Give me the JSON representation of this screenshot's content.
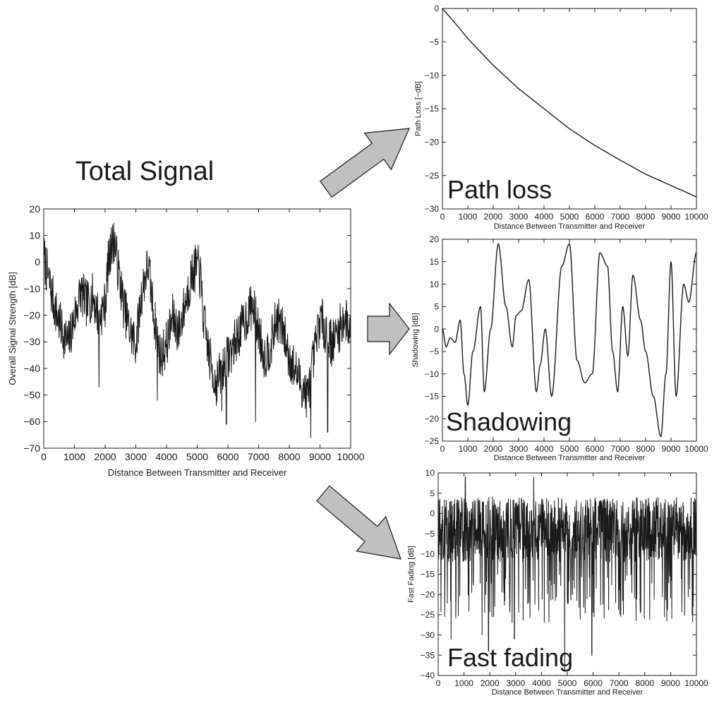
{
  "figure_title": "Total Signal",
  "colors": {
    "line": "#1a1a1a",
    "arrow_fill": "#c0c0c0",
    "arrow_stroke": "#1a1a1a",
    "background": "#ffffff"
  },
  "chart_data": [
    {
      "id": "total",
      "type": "line",
      "title": "",
      "xlabel": "Distance Between Transmitter and Receiver",
      "ylabel": "Overall Signal Strength [dB]",
      "xlim": [
        0,
        10000
      ],
      "ylim": [
        -70,
        20
      ],
      "xticks": [
        0,
        1000,
        2000,
        3000,
        4000,
        5000,
        6000,
        7000,
        8000,
        9000,
        10000
      ],
      "yticks": [
        20,
        10,
        0,
        -10,
        -20,
        -30,
        -40,
        -50,
        -60,
        -70
      ],
      "grid": false,
      "series": [
        {
          "x": [
            0,
            200,
            400,
            600,
            800,
            1000,
            1200,
            1400,
            1600,
            1800,
            2000,
            2100,
            2200,
            2300,
            2400,
            2600,
            2800,
            3000,
            3200,
            3400,
            3600,
            3800,
            4000,
            4200,
            4400,
            4600,
            4800,
            5000,
            5100,
            5200,
            5400,
            5600,
            5800,
            6000,
            6200,
            6400,
            6600,
            6800,
            7000,
            7200,
            7400,
            7600,
            7800,
            8000,
            8200,
            8400,
            8600,
            8800,
            9000,
            9200,
            9400,
            9600,
            9800,
            10000
          ],
          "values": [
            3,
            -8,
            -18,
            -25,
            -30,
            -20,
            -10,
            -15,
            -12,
            -20,
            -15,
            0,
            5,
            10,
            0,
            -15,
            -25,
            -30,
            -10,
            0,
            -20,
            -35,
            -30,
            -20,
            -25,
            -15,
            -5,
            0,
            -5,
            -20,
            -35,
            -45,
            -40,
            -35,
            -30,
            -25,
            -20,
            -15,
            -25,
            -35,
            -30,
            -20,
            -25,
            -35,
            -40,
            -45,
            -50,
            -35,
            -20,
            -25,
            -30,
            -25,
            -20,
            -25
          ],
          "min_spikes": [
            {
              "x": 1800,
              "y": -47
            },
            {
              "x": 3700,
              "y": -52
            },
            {
              "x": 5800,
              "y": -56
            },
            {
              "x": 5950,
              "y": -61
            },
            {
              "x": 6900,
              "y": -60
            },
            {
              "x": 8700,
              "y": -66
            },
            {
              "x": 9250,
              "y": -64
            }
          ],
          "max_spikes": [
            {
              "x": 2200,
              "y": 13
            },
            {
              "x": 5100,
              "y": 2
            }
          ]
        }
      ]
    },
    {
      "id": "pathloss",
      "type": "line",
      "title": "",
      "xlabel": "Distance Between Transmitter and Receiver",
      "ylabel": "Path Loss [−dB]",
      "xlim": [
        0,
        10000
      ],
      "ylim": [
        -30,
        0
      ],
      "xticks": [
        0,
        1000,
        2000,
        3000,
        4000,
        5000,
        6000,
        7000,
        8000,
        9000,
        10000
      ],
      "yticks": [
        0,
        -5,
        -10,
        -15,
        -20,
        -25,
        -30
      ],
      "grid": false,
      "series": [
        {
          "x": [
            0,
            500,
            1000,
            2000,
            3000,
            4000,
            5000,
            6000,
            7000,
            8000,
            9000,
            10000
          ],
          "values": [
            0,
            -2.2,
            -4.5,
            -8.5,
            -12,
            -15,
            -18,
            -20.5,
            -22.7,
            -24.8,
            -26.5,
            -28.2
          ]
        }
      ]
    },
    {
      "id": "shadowing",
      "type": "line",
      "title": "",
      "xlabel": "Distance Between Transmitter and Receiver",
      "ylabel": "Shadowing [dB]",
      "xlim": [
        0,
        10000
      ],
      "ylim": [
        -25,
        20
      ],
      "xticks": [
        0,
        1000,
        2000,
        3000,
        4000,
        5000,
        6000,
        7000,
        8000,
        9000,
        10000
      ],
      "yticks": [
        20,
        15,
        10,
        5,
        0,
        -5,
        -10,
        -15,
        -20,
        -25
      ],
      "grid": false,
      "series": [
        {
          "x": [
            0,
            150,
            300,
            500,
            700,
            850,
            1000,
            1200,
            1500,
            1650,
            1900,
            2200,
            2500,
            2750,
            2900,
            3100,
            3400,
            3700,
            3850,
            4050,
            4300,
            4700,
            5000,
            5300,
            5600,
            5900,
            6200,
            6500,
            6700,
            6900,
            7100,
            7300,
            7500,
            7800,
            8000,
            8300,
            8600,
            8800,
            9000,
            9200,
            9500,
            9700,
            10000
          ],
          "values": [
            0,
            -4,
            -2,
            -3,
            2,
            -10,
            -17,
            -5,
            5,
            -14,
            0,
            19,
            5,
            -4,
            3,
            4,
            11,
            -14,
            -8,
            0,
            -15,
            14,
            19,
            -7,
            -12,
            -10,
            17,
            14,
            -5,
            -14,
            5,
            -6,
            12,
            2,
            -5,
            -15,
            -24,
            -10,
            15,
            -15,
            10,
            6,
            17
          ]
        }
      ]
    },
    {
      "id": "fastfading",
      "type": "line",
      "title": "",
      "xlabel": "Distance Between Transmitter and Receiver",
      "ylabel": "Fast Fading [dB]",
      "xlim": [
        0,
        10000
      ],
      "ylim": [
        -40,
        10
      ],
      "xticks": [
        0,
        1000,
        2000,
        3000,
        4000,
        5000,
        6000,
        7000,
        8000,
        9000,
        10000
      ],
      "yticks": [
        10,
        5,
        0,
        -5,
        -10,
        -15,
        -20,
        -25,
        -30,
        -35,
        -40
      ],
      "grid": false,
      "series": [
        {
          "band": [
            4,
            -12
          ],
          "min_spikes": [
            {
              "x": 500,
              "y": -31
            },
            {
              "x": 1700,
              "y": -30
            },
            {
              "x": 1950,
              "y": -34
            },
            {
              "x": 2950,
              "y": -31
            },
            {
              "x": 4900,
              "y": -39
            },
            {
              "x": 5950,
              "y": -35
            }
          ],
          "max_spikes": [
            {
              "x": 1050,
              "y": 9
            },
            {
              "x": 3700,
              "y": 9
            }
          ]
        }
      ]
    }
  ],
  "panel_labels": {
    "pathloss": "Path loss",
    "shadowing": "Shadowing",
    "fastfading": "Fast fading"
  }
}
